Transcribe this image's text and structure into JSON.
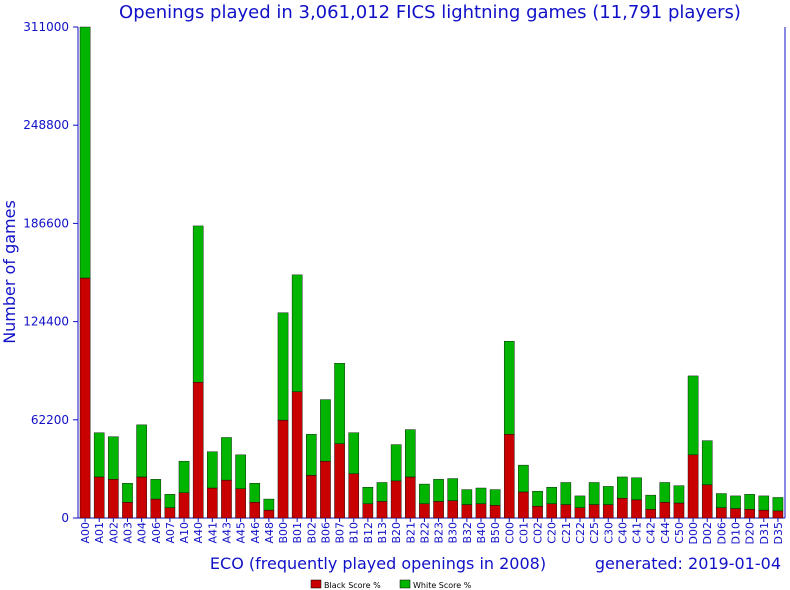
{
  "chart_data": {
    "type": "bar",
    "stacked": true,
    "title": "Openings played in 3,061,012 FICS lightning games (11,791 players)",
    "xlabel": "ECO (frequently played openings in 2008)",
    "ylabel": "Number of games",
    "generated": "generated: 2019-01-04",
    "ylim": [
      0,
      311000
    ],
    "yticks": [
      "0",
      "62200",
      "124400",
      "186600",
      "248800",
      "311000"
    ],
    "grid": false,
    "legend_position": "bottom",
    "colors": {
      "black": "#c80000",
      "white": "#00b400",
      "axis": "#1010c8"
    },
    "categories": [
      "A00",
      "A01",
      "A02",
      "A03",
      "A04",
      "A06",
      "A07",
      "A10",
      "A40",
      "A41",
      "A43",
      "A45",
      "A46",
      "A48",
      "B00",
      "B01",
      "B02",
      "B06",
      "B07",
      "B10",
      "B12",
      "B13",
      "B20",
      "B21",
      "B22",
      "B23",
      "B30",
      "B32",
      "B40",
      "B50",
      "C00",
      "C01",
      "C02",
      "C20",
      "C21",
      "C22",
      "C25",
      "C30",
      "C40",
      "C41",
      "C42",
      "C44",
      "C50",
      "D00",
      "D02",
      "D06",
      "D10",
      "D20",
      "D31",
      "D35"
    ],
    "series": [
      {
        "name": "Black Score %",
        "color": "#c80000",
        "values": [
          152000,
          26000,
          24500,
          10000,
          26000,
          12000,
          6500,
          16000,
          86000,
          19000,
          24000,
          18500,
          10000,
          5000,
          62000,
          80000,
          27000,
          36000,
          47000,
          28000,
          9000,
          10500,
          23500,
          26000,
          9000,
          10500,
          11000,
          8500,
          9000,
          8000,
          53000,
          16500,
          7500,
          9000,
          8500,
          6500,
          8500,
          8500,
          12500,
          11500,
          5500,
          10000,
          9500,
          40000,
          21000,
          6500,
          6000,
          5500,
          5000,
          4500
        ]
      },
      {
        "name": "White Score %",
        "color": "#00b400",
        "values": [
          159000,
          28000,
          27000,
          12000,
          33000,
          12500,
          8500,
          20000,
          99000,
          23000,
          27000,
          21500,
          12000,
          7000,
          68000,
          74000,
          26000,
          39000,
          51000,
          26000,
          10500,
          12000,
          23000,
          30000,
          12500,
          14000,
          14000,
          9500,
          10000,
          10000,
          59000,
          17000,
          9500,
          10500,
          14000,
          7500,
          14000,
          11500,
          13500,
          14000,
          9000,
          12500,
          11000,
          50000,
          28000,
          9000,
          8000,
          9500,
          9000,
          8500
        ]
      }
    ]
  }
}
